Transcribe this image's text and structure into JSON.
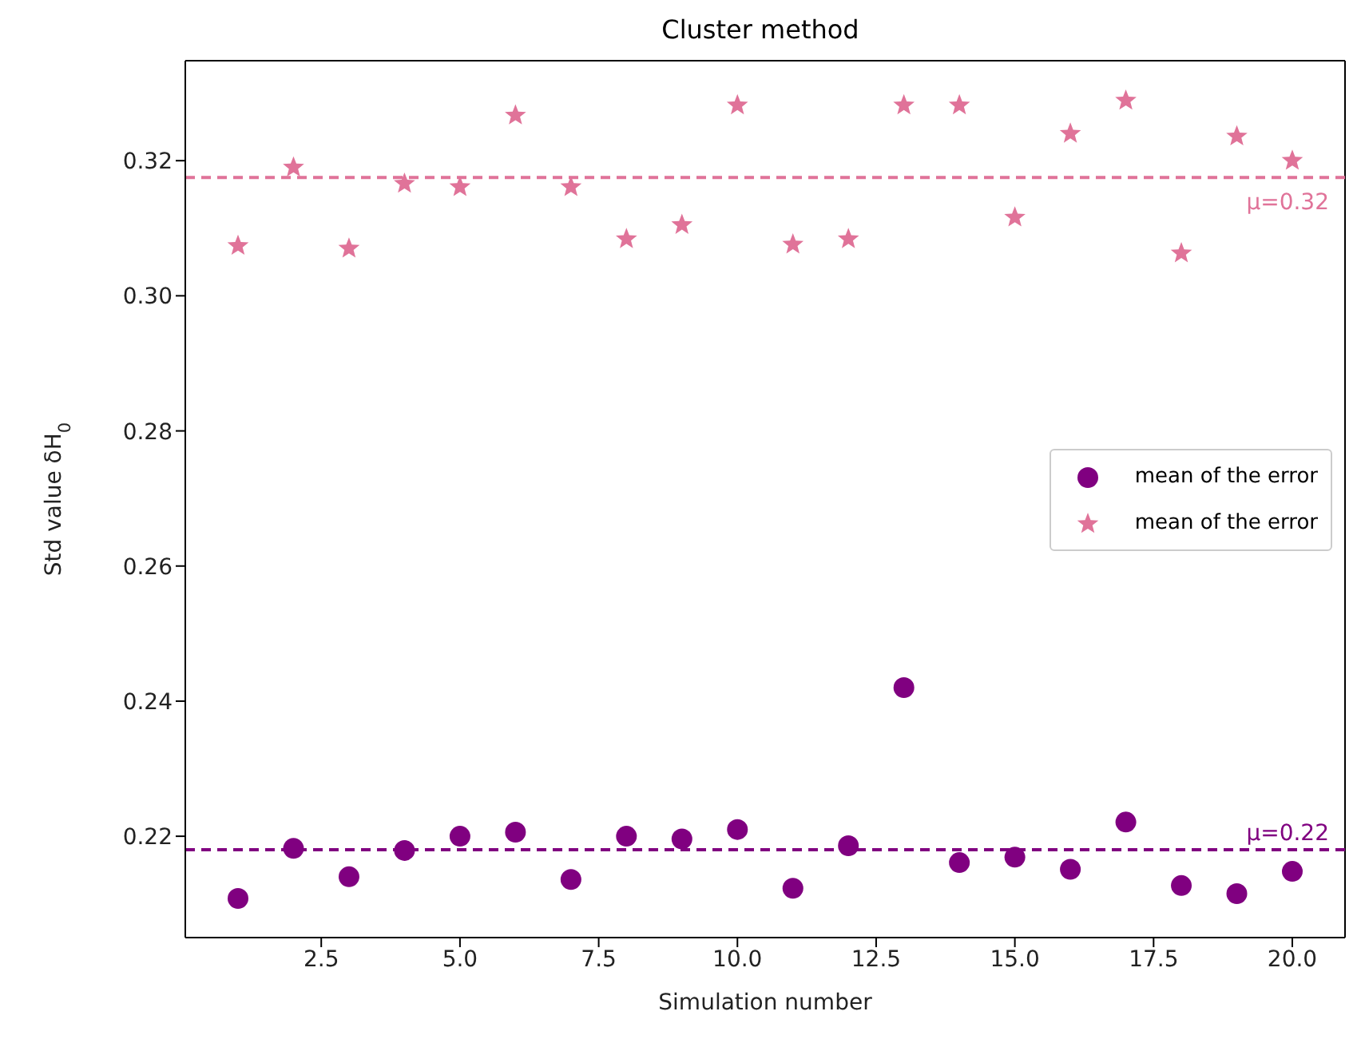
{
  "chart_data": {
    "type": "scatter",
    "title": "Cluster method",
    "xlabel": "Simulation number",
    "ylabel": "Std value δH$_{0}$",
    "x": [
      1,
      2,
      3,
      4,
      5,
      6,
      7,
      8,
      9,
      10,
      11,
      12,
      13,
      14,
      15,
      16,
      17,
      18,
      19,
      20
    ],
    "series": [
      {
        "name": "mean of the error",
        "color": "#800080",
        "marker": "circle",
        "values": [
          0.2108,
          0.2182,
          0.214,
          0.2179,
          0.22,
          0.2206,
          0.2136,
          0.22,
          0.2196,
          0.221,
          0.2123,
          0.2186,
          0.242,
          0.2161,
          0.2169,
          0.2151,
          0.2221,
          0.2127,
          0.2115,
          0.2148
        ]
      },
      {
        "name": "mean of the error",
        "color": "#e07399",
        "marker": "star",
        "values": [
          0.3074,
          0.319,
          0.307,
          0.3166,
          0.3161,
          0.3267,
          0.3161,
          0.3084,
          0.3105,
          0.3282,
          0.3076,
          0.3084,
          0.3282,
          0.3282,
          0.3116,
          0.324,
          0.3289,
          0.3063,
          0.3236,
          0.32
        ]
      }
    ],
    "ref_lines": [
      {
        "axis": "y",
        "value": 0.3175,
        "label": "μ=0.32",
        "color": "#e07399",
        "line_style": "dashed"
      },
      {
        "axis": "y",
        "value": 0.218,
        "label": "μ=0.22",
        "color": "#800080",
        "line_style": "dashed"
      }
    ],
    "xlim": [
      0.05,
      20.95
    ],
    "xticks": [
      {
        "value": 2.5,
        "label": "2.5"
      },
      {
        "value": 5,
        "label": "5.0"
      },
      {
        "value": 7.5,
        "label": "7.5"
      },
      {
        "value": 10,
        "label": "10.0"
      },
      {
        "value": 12.5,
        "label": "12.5"
      },
      {
        "value": 15,
        "label": "15.0"
      },
      {
        "value": 17.5,
        "label": "17.5"
      },
      {
        "value": 20,
        "label": "20.0"
      }
    ],
    "ylim": [
      0.205,
      0.3348
    ],
    "yticks": [
      {
        "value": 0.22,
        "label": "0.22"
      },
      {
        "value": 0.24,
        "label": "0.24"
      },
      {
        "value": 0.26,
        "label": "0.26"
      },
      {
        "value": 0.28,
        "label": "0.28"
      },
      {
        "value": 0.3,
        "label": "0.30"
      },
      {
        "value": 0.32,
        "label": "0.32"
      }
    ],
    "grid": false,
    "legend": "right"
  }
}
